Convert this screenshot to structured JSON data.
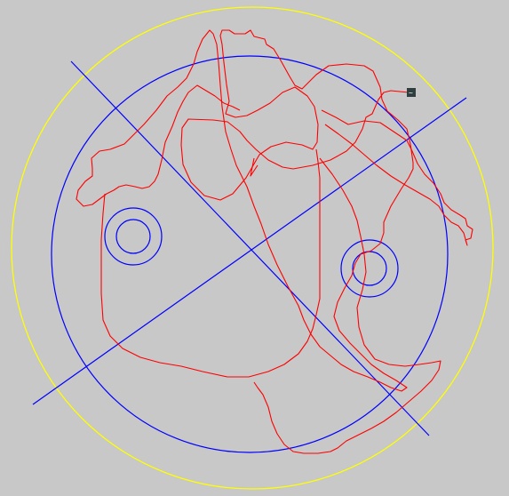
{
  "figure": {
    "description_visible_text": "",
    "colors": {
      "background": "#c8c8c8",
      "outer_circle": "#ffff00",
      "arena_circle": "#0000ff",
      "crosshair_lines": "#0000ff",
      "target_rings": "#0000ff",
      "trajectory": "#ff0000",
      "end_marker": "#2f3f3f",
      "end_marker_symbol": "#ffffff"
    },
    "icons": {
      "end_marker": "position-marker-icon"
    },
    "marker_symbol": "~"
  }
}
